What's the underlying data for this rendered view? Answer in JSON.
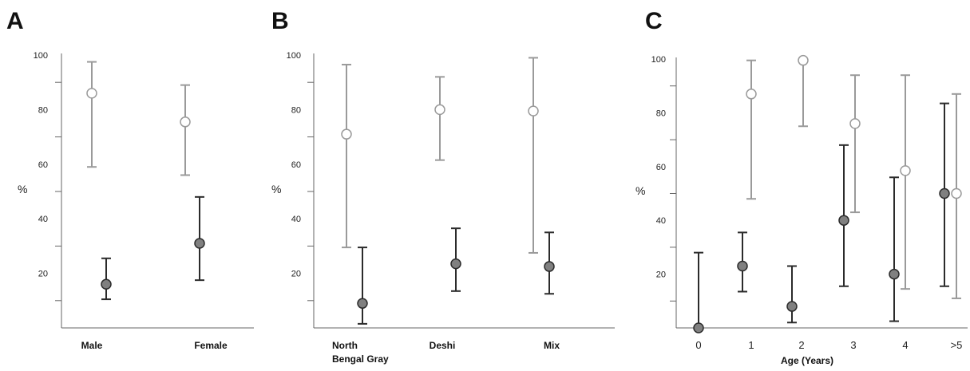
{
  "colors": {
    "series_open_stroke": "#9a9a9a",
    "series_open_fill": "#ffffff",
    "series_filled_stroke": "#2b2b2b",
    "series_filled_fill": "#808080",
    "axis": "#666666"
  },
  "chart_data": [
    {
      "type": "scatter",
      "panel_label": "A",
      "title": "",
      "xlabel": "",
      "ylabel": "%",
      "ylim": [
        0,
        100
      ],
      "yticks": [
        20,
        40,
        60,
        80,
        100
      ],
      "categories": [
        "Male",
        "Female"
      ],
      "series": [
        {
          "style": "open",
          "values": [
            86,
            75.5
          ],
          "lower": [
            59,
            56
          ],
          "upper": [
            97.5,
            89
          ]
        },
        {
          "style": "filled",
          "values": [
            16,
            31
          ],
          "lower": [
            10.5,
            17.5
          ],
          "upper": [
            25.5,
            48
          ]
        }
      ]
    },
    {
      "type": "scatter",
      "panel_label": "B",
      "title": "",
      "xlabel": "",
      "ylabel": "%",
      "ylim": [
        0,
        100
      ],
      "yticks": [
        20,
        40,
        60,
        80,
        100
      ],
      "categories": [
        "North Bengal Gray",
        "Deshi",
        "Mix"
      ],
      "category_lines": [
        [
          "North",
          "Bengal Gray"
        ],
        [
          "Deshi"
        ],
        [
          "Mix"
        ]
      ],
      "series": [
        {
          "style": "open",
          "values": [
            71,
            80,
            79.5
          ],
          "lower": [
            29.5,
            61.5,
            27.5
          ],
          "upper": [
            96.5,
            92,
            99
          ]
        },
        {
          "style": "filled",
          "values": [
            9,
            23.5,
            22.5
          ],
          "lower": [
            1.5,
            13.5,
            12.5
          ],
          "upper": [
            29.5,
            36.5,
            35
          ]
        }
      ]
    },
    {
      "type": "scatter",
      "panel_label": "C",
      "title": "",
      "xlabel": "Age (Years)",
      "ylabel": "%",
      "ylim": [
        0,
        100
      ],
      "yticks": [
        20,
        40,
        60,
        80,
        100
      ],
      "categories": [
        "0",
        "1",
        "2",
        "3",
        "4",
        ">5"
      ],
      "series": [
        {
          "style": "open",
          "values": [
            null,
            87,
            99.5,
            76,
            58.5,
            50
          ],
          "lower": [
            null,
            48,
            75,
            43,
            14.5,
            11
          ],
          "upper": [
            null,
            99.5,
            99.5,
            94,
            94,
            87
          ]
        },
        {
          "style": "filled",
          "values": [
            0,
            23,
            8,
            40,
            20,
            50
          ],
          "lower": [
            0,
            13.5,
            2,
            15.5,
            2.5,
            15.5
          ],
          "upper": [
            28,
            35.5,
            23,
            68,
            56,
            83.5
          ]
        }
      ]
    }
  ]
}
